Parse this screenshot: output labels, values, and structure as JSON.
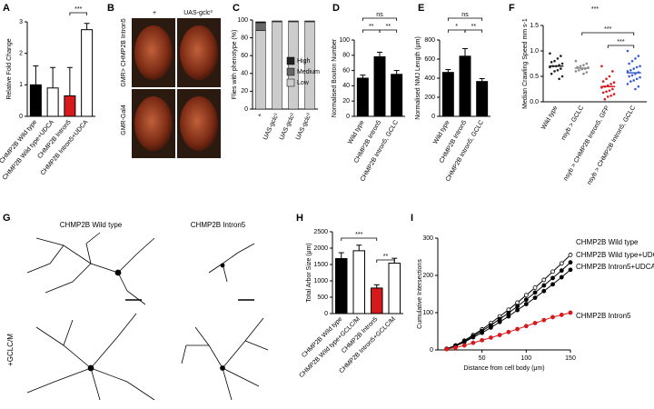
{
  "panel_labels": [
    "A",
    "B",
    "C",
    "D",
    "E",
    "F",
    "G",
    "H",
    "I"
  ],
  "panel_B": {
    "columns": [
      "+",
      "UAS-gclc³"
    ],
    "rows": [
      "GMR> CHMP2B Intron5",
      "GMR-Gal4"
    ]
  },
  "panel_G": {
    "columns": [
      "CHMP2B Wild type",
      "CHMP2B Intron5"
    ],
    "rows": [
      "+GCLC/M"
    ]
  },
  "chart_data": [
    {
      "type": "bar",
      "ylabel": "Relative Fold Change",
      "categories": [
        "CHMP2B Wild type",
        "CHMP2B Wild type+UDCA",
        "CHMP2B Intron5",
        "CHMP2B Intron5+UDCA"
      ],
      "values": [
        1.0,
        0.9,
        0.65,
        2.75
      ],
      "errors": [
        0.6,
        0.65,
        0.9,
        0.2
      ],
      "colors": [
        "#000000",
        "#ffffff",
        "#d7191c",
        "#ffffff"
      ],
      "ylim": [
        0,
        3
      ],
      "yticks": [
        0,
        1,
        2,
        3
      ],
      "annotations": [
        "***"
      ]
    },
    {
      "type": "stacked_bar",
      "ylabel": "Flies with phenotype (%)",
      "categories": [
        "+",
        "UAS-gclc¹",
        "UAS-gclc²",
        "UAS-gclc³"
      ],
      "series": [
        {
          "name": "Low",
          "color": "#cccccc",
          "values": [
            88,
            98,
            98,
            98
          ]
        },
        {
          "name": "Medium",
          "color": "#666666",
          "values": [
            9,
            1,
            1,
            1
          ]
        },
        {
          "name": "High",
          "color": "#222222",
          "values": [
            1,
            0,
            0,
            0
          ]
        }
      ],
      "ylim": [
        0,
        100
      ],
      "yticks": [
        0,
        20,
        40,
        60,
        80,
        100
      ],
      "legend": "right"
    },
    {
      "type": "bar",
      "ylabel": "Normalised Bouton Number",
      "categories": [
        "Wild type",
        "CHMP2B Intron5",
        "CHMP2B Intron5, GCLC"
      ],
      "values": [
        50,
        78,
        55
      ],
      "errors": [
        4,
        6,
        5
      ],
      "n": [
        8,
        7,
        8
      ],
      "colors": [
        "#000000",
        "#000000",
        "#000000"
      ],
      "ylim": [
        0,
        100
      ],
      "yticks": [
        0,
        20,
        40,
        60,
        80,
        100
      ],
      "annotations": [
        "ns",
        "**",
        "**"
      ]
    },
    {
      "type": "bar",
      "ylabel": "Normalised NMJ Length (μm)",
      "categories": [
        "Wild type",
        "CHMP2B Intron5",
        "CHMP2B Intron5, GCLC"
      ],
      "values": [
        460,
        630,
        365
      ],
      "errors": [
        30,
        80,
        30
      ],
      "n": [
        8,
        7,
        8
      ],
      "colors": [
        "#000000",
        "#000000",
        "#000000"
      ],
      "ylim": [
        0,
        800
      ],
      "yticks": [
        0,
        200,
        400,
        600,
        800
      ],
      "annotations": [
        "ns",
        "*",
        "**"
      ]
    },
    {
      "type": "dot",
      "ylabel": "Median Crawling Speed mm s-1",
      "categories": [
        "Wild type",
        "nsyb > GCLC",
        "nsyb > CHMP2B Intron5, GFP",
        "nsyb > CHMP2B Intron5, GCLC"
      ],
      "groups": [
        {
          "color": "#222222",
          "median": 0.7,
          "values": [
            0.95,
            0.9,
            0.85,
            0.8,
            0.78,
            0.75,
            0.72,
            0.7,
            0.7,
            0.68,
            0.65,
            0.62,
            0.6,
            0.55,
            0.5,
            0.45
          ]
        },
        {
          "color": "#888888",
          "median": 0.66,
          "values": [
            0.8,
            0.75,
            0.72,
            0.7,
            0.68,
            0.67,
            0.65,
            0.64,
            0.62,
            0.6,
            0.58,
            0.55
          ]
        },
        {
          "color": "#d7191c",
          "median": 0.3,
          "values": [
            0.7,
            0.6,
            0.5,
            0.45,
            0.4,
            0.38,
            0.35,
            0.32,
            0.3,
            0.28,
            0.25,
            0.22,
            0.2,
            0.18,
            0.15,
            0.12,
            0.1,
            0.05
          ]
        },
        {
          "color": "#3a5fcd",
          "median": 0.57,
          "values": [
            1.0,
            0.9,
            0.85,
            0.8,
            0.75,
            0.7,
            0.68,
            0.65,
            0.62,
            0.6,
            0.58,
            0.55,
            0.52,
            0.5,
            0.48,
            0.45,
            0.42,
            0.4,
            0.35,
            0.3,
            0.25
          ]
        }
      ],
      "ylim": [
        0,
        1.5
      ],
      "yticks": [
        {
          "value": 0,
          "label": "0.0"
        },
        0.5,
        {
          "value": 1,
          "label": "1.0"
        },
        1.5
      ],
      "annotations": [
        "***",
        "***",
        "***"
      ]
    },
    {
      "type": "bar",
      "ylabel": "Total Arbor Size (μm)",
      "categories": [
        "CHMP2B Wild type",
        "CHMP2B Wild type+GCLC/M",
        "CHMP2B Intron5",
        "CHMP2B Intron5+GCLC/M"
      ],
      "values": [
        1680,
        1920,
        780,
        1540
      ],
      "errors": [
        180,
        170,
        100,
        150
      ],
      "colors": [
        "#000000",
        "#ffffff",
        "#d7191c",
        "#ffffff"
      ],
      "ylim": [
        0,
        2500
      ],
      "yticks": [
        0,
        500,
        1000,
        1500,
        2000,
        2500
      ],
      "annotations": [
        "***",
        "**"
      ]
    },
    {
      "type": "line",
      "ylabel": "Cumulative Intersections",
      "xlabel": "Distance from cell body (μm)",
      "x": [
        10,
        20,
        30,
        40,
        50,
        60,
        70,
        80,
        90,
        100,
        110,
        120,
        130,
        140,
        150
      ],
      "series": [
        {
          "name": "CHMP2B Wild type",
          "color": "#000000",
          "marker": "#ffffff",
          "values": [
            3,
            12,
            25,
            40,
            55,
            72,
            90,
            108,
            127,
            147,
            167,
            188,
            210,
            232,
            255
          ]
        },
        {
          "name": "CHMP2B Wild type+UDCA",
          "color": "#000000",
          "marker": "#000000",
          "values": [
            3,
            11,
            23,
            37,
            51,
            66,
            83,
            99,
            117,
            135,
            154,
            173,
            193,
            213,
            235
          ]
        },
        {
          "name": "CHMP2B Intron5+UDCA",
          "color": "#000000",
          "marker": "#000000",
          "values": [
            3,
            10,
            21,
            34,
            46,
            60,
            75,
            90,
            107,
            123,
            140,
            158,
            176,
            195,
            215
          ]
        },
        {
          "name": "CHMP2B Intron5",
          "color": "#d7191c",
          "marker": "#d7191c",
          "values": [
            2,
            6,
            12,
            19,
            26,
            33,
            40,
            48,
            56,
            64,
            72,
            80,
            88,
            94,
            100
          ]
        }
      ],
      "xlim": [
        0,
        150
      ],
      "xticks": [
        50,
        100,
        150
      ],
      "ylim": [
        0,
        300
      ],
      "yticks": [
        0,
        100,
        200,
        300
      ]
    }
  ]
}
